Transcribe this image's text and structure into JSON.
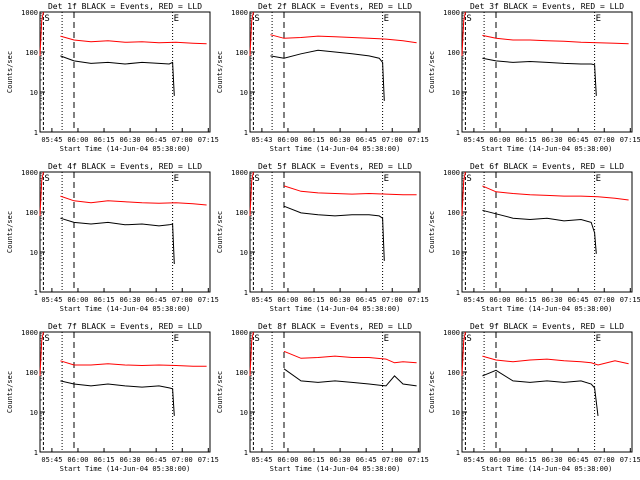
{
  "chart_data": [
    {
      "type": "line",
      "title": "Det 1f BLACK = Events, RED = LLD",
      "xlabel": "Start Time (14-Jun-04 05:38:00)",
      "ylabel": "Counts/sec",
      "x_ticks": [
        "05:45",
        "06:00",
        "06:15",
        "06:30",
        "06:45",
        "07:00",
        "07:15"
      ],
      "y_ticks": [
        "1",
        "10",
        "100",
        "1000"
      ],
      "markers": [
        "S",
        "E"
      ],
      "yscale": "log",
      "ylim": [
        1,
        1000
      ],
      "series": [
        {
          "name": "LLD",
          "color": "#ff0000",
          "points": [
            [
              0.12,
              250
            ],
            [
              0.2,
              200
            ],
            [
              0.3,
              180
            ],
            [
              0.4,
              190
            ],
            [
              0.5,
              175
            ],
            [
              0.6,
              180
            ],
            [
              0.7,
              170
            ],
            [
              0.8,
              175
            ],
            [
              0.9,
              165
            ],
            [
              0.98,
              160
            ]
          ]
        },
        {
          "name": "Events",
          "color": "#000000",
          "points": [
            [
              0.12,
              80
            ],
            [
              0.2,
              60
            ],
            [
              0.3,
              52
            ],
            [
              0.4,
              55
            ],
            [
              0.5,
              50
            ],
            [
              0.6,
              55
            ],
            [
              0.7,
              52
            ],
            [
              0.76,
              50
            ],
            [
              0.78,
              55
            ],
            [
              0.79,
              8
            ]
          ]
        }
      ]
    },
    {
      "type": "line",
      "title": "Det 2f BLACK = Events, RED = LLD",
      "xlabel": "Start Time (14-Jun-04 05:38:00)",
      "ylabel": "Counts/sec",
      "x_ticks": [
        "05:43",
        "06:00",
        "06:15",
        "06:30",
        "06:45",
        "07:00",
        "07:15"
      ],
      "y_ticks": [
        "1",
        "10",
        "100",
        "1000"
      ],
      "markers": [
        "S",
        "E"
      ],
      "yscale": "log",
      "ylim": [
        1,
        1000
      ],
      "series": [
        {
          "name": "LLD",
          "color": "#ff0000",
          "points": [
            [
              0.12,
              270
            ],
            [
              0.2,
              220
            ],
            [
              0.3,
              230
            ],
            [
              0.4,
              250
            ],
            [
              0.5,
              240
            ],
            [
              0.6,
              230
            ],
            [
              0.7,
              220
            ],
            [
              0.8,
              210
            ],
            [
              0.9,
              190
            ],
            [
              0.98,
              170
            ]
          ]
        },
        {
          "name": "Events",
          "color": "#000000",
          "points": [
            [
              0.12,
              80
            ],
            [
              0.2,
              70
            ],
            [
              0.3,
              90
            ],
            [
              0.4,
              110
            ],
            [
              0.5,
              100
            ],
            [
              0.6,
              90
            ],
            [
              0.7,
              80
            ],
            [
              0.76,
              70
            ],
            [
              0.78,
              55
            ],
            [
              0.79,
              6
            ]
          ]
        }
      ]
    },
    {
      "type": "line",
      "title": "Det 3f BLACK = Events, RED = LLD",
      "xlabel": "Start Time (14-Jun-04 05:38:00)",
      "ylabel": "Counts/sec",
      "x_ticks": [
        "05:45",
        "06:00",
        "06:15",
        "06:30",
        "06:45",
        "07:00",
        "07:15"
      ],
      "y_ticks": [
        "1",
        "10",
        "100",
        "1000"
      ],
      "markers": [
        "S",
        "E"
      ],
      "yscale": "log",
      "ylim": [
        1,
        1000
      ],
      "series": [
        {
          "name": "LLD",
          "color": "#ff0000",
          "points": [
            [
              0.12,
              260
            ],
            [
              0.2,
              220
            ],
            [
              0.3,
              200
            ],
            [
              0.4,
              200
            ],
            [
              0.5,
              190
            ],
            [
              0.6,
              185
            ],
            [
              0.7,
              175
            ],
            [
              0.8,
              170
            ],
            [
              0.9,
              165
            ],
            [
              0.98,
              160
            ]
          ]
        },
        {
          "name": "Events",
          "color": "#000000",
          "points": [
            [
              0.12,
              70
            ],
            [
              0.2,
              60
            ],
            [
              0.3,
              55
            ],
            [
              0.4,
              58
            ],
            [
              0.5,
              55
            ],
            [
              0.6,
              52
            ],
            [
              0.7,
              50
            ],
            [
              0.76,
              50
            ],
            [
              0.78,
              48
            ],
            [
              0.79,
              8
            ]
          ]
        }
      ]
    },
    {
      "type": "line",
      "title": "Det 4f BLACK = Events, RED = LLD",
      "xlabel": "Start Time (14-Jun-04 05:38:00)",
      "ylabel": "Counts/sec",
      "x_ticks": [
        "05:45",
        "06:00",
        "06:15",
        "06:30",
        "06:45",
        "07:00",
        "07:15"
      ],
      "y_ticks": [
        "1",
        "10",
        "100",
        "1000"
      ],
      "markers": [
        "S",
        "E"
      ],
      "yscale": "log",
      "ylim": [
        1,
        1000
      ],
      "series": [
        {
          "name": "LLD",
          "color": "#ff0000",
          "points": [
            [
              0.12,
              250
            ],
            [
              0.2,
              190
            ],
            [
              0.3,
              170
            ],
            [
              0.4,
              190
            ],
            [
              0.5,
              180
            ],
            [
              0.6,
              170
            ],
            [
              0.7,
              165
            ],
            [
              0.8,
              170
            ],
            [
              0.9,
              160
            ],
            [
              0.98,
              150
            ]
          ]
        },
        {
          "name": "Events",
          "color": "#000000",
          "points": [
            [
              0.12,
              70
            ],
            [
              0.2,
              55
            ],
            [
              0.3,
              50
            ],
            [
              0.4,
              55
            ],
            [
              0.5,
              48
            ],
            [
              0.6,
              50
            ],
            [
              0.7,
              45
            ],
            [
              0.76,
              48
            ],
            [
              0.78,
              50
            ],
            [
              0.79,
              5
            ]
          ]
        }
      ]
    },
    {
      "type": "line",
      "title": "Det 5f BLACK = Events, RED = LLD",
      "xlabel": "Start Time (14-Jun-04 05:38:00)",
      "ylabel": "Counts/sec",
      "x_ticks": [
        "05:45",
        "06:00",
        "06:15",
        "06:30",
        "06:45",
        "07:00",
        "07:15"
      ],
      "y_ticks": [
        "1",
        "10",
        "100",
        "1000"
      ],
      "markers": [
        "S",
        "E"
      ],
      "yscale": "log",
      "ylim": [
        1,
        1000
      ],
      "series": [
        {
          "name": "LLD",
          "color": "#ff0000",
          "points": [
            [
              0.2,
              450
            ],
            [
              0.3,
              330
            ],
            [
              0.4,
              300
            ],
            [
              0.5,
              290
            ],
            [
              0.6,
              280
            ],
            [
              0.7,
              290
            ],
            [
              0.8,
              280
            ],
            [
              0.9,
              270
            ],
            [
              0.98,
              270
            ]
          ]
        },
        {
          "name": "Events",
          "color": "#000000",
          "points": [
            [
              0.2,
              140
            ],
            [
              0.3,
              95
            ],
            [
              0.4,
              85
            ],
            [
              0.5,
              80
            ],
            [
              0.6,
              85
            ],
            [
              0.7,
              85
            ],
            [
              0.76,
              80
            ],
            [
              0.78,
              70
            ],
            [
              0.79,
              6
            ]
          ]
        }
      ]
    },
    {
      "type": "line",
      "title": "Det 6f BLACK = Events, RED = LLD",
      "xlabel": "Start Time (14-Jun-04 05:38:00)",
      "ylabel": "Counts/sec",
      "x_ticks": [
        "05:45",
        "06:00",
        "06:15",
        "06:30",
        "06:45",
        "07:00",
        "07:15"
      ],
      "y_ticks": [
        "1",
        "10",
        "100",
        "1000"
      ],
      "markers": [
        "S",
        "E"
      ],
      "yscale": "log",
      "ylim": [
        1,
        1000
      ],
      "series": [
        {
          "name": "LLD",
          "color": "#ff0000",
          "points": [
            [
              0.12,
              450
            ],
            [
              0.2,
              320
            ],
            [
              0.3,
              290
            ],
            [
              0.4,
              270
            ],
            [
              0.5,
              260
            ],
            [
              0.6,
              250
            ],
            [
              0.7,
              250
            ],
            [
              0.8,
              240
            ],
            [
              0.9,
              220
            ],
            [
              0.98,
              200
            ]
          ]
        },
        {
          "name": "Events",
          "color": "#000000",
          "points": [
            [
              0.12,
              110
            ],
            [
              0.2,
              90
            ],
            [
              0.3,
              70
            ],
            [
              0.4,
              65
            ],
            [
              0.5,
              70
            ],
            [
              0.6,
              60
            ],
            [
              0.7,
              65
            ],
            [
              0.76,
              55
            ],
            [
              0.78,
              30
            ],
            [
              0.79,
              9
            ]
          ]
        }
      ]
    },
    {
      "type": "line",
      "title": "Det 7f BLACK = Events, RED = LLD",
      "xlabel": "Start Time (14-Jun-04 05:38:00)",
      "ylabel": "Counts/sec",
      "x_ticks": [
        "05:45",
        "06:00",
        "06:15",
        "06:30",
        "06:45",
        "07:00",
        "07:15"
      ],
      "y_ticks": [
        "1",
        "10",
        "100",
        "1000"
      ],
      "markers": [
        "S",
        "E"
      ],
      "yscale": "log",
      "ylim": [
        1,
        1000
      ],
      "series": [
        {
          "name": "LLD",
          "color": "#ff0000",
          "points": [
            [
              0.12,
              190
            ],
            [
              0.2,
              150
            ],
            [
              0.3,
              150
            ],
            [
              0.4,
              160
            ],
            [
              0.5,
              150
            ],
            [
              0.6,
              145
            ],
            [
              0.7,
              150
            ],
            [
              0.8,
              145
            ],
            [
              0.9,
              140
            ],
            [
              0.98,
              140
            ]
          ]
        },
        {
          "name": "Events",
          "color": "#000000",
          "points": [
            [
              0.12,
              60
            ],
            [
              0.2,
              50
            ],
            [
              0.3,
              45
            ],
            [
              0.4,
              50
            ],
            [
              0.5,
              45
            ],
            [
              0.6,
              42
            ],
            [
              0.7,
              45
            ],
            [
              0.76,
              40
            ],
            [
              0.78,
              38
            ],
            [
              0.79,
              8
            ]
          ]
        }
      ]
    },
    {
      "type": "line",
      "title": "Det 8f BLACK = Events, RED = LLD",
      "xlabel": "Start Time (14-Jun-04 05:38:00)",
      "ylabel": "Counts/sec",
      "x_ticks": [
        "05:45",
        "06:00",
        "06:15",
        "06:30",
        "06:45",
        "07:00",
        "07:15"
      ],
      "y_ticks": [
        "1",
        "10",
        "100",
        "1000"
      ],
      "markers": [
        "S",
        "E"
      ],
      "yscale": "log",
      "ylim": [
        1,
        1000
      ],
      "series": [
        {
          "name": "LLD",
          "color": "#ff0000",
          "points": [
            [
              0.2,
              330
            ],
            [
              0.3,
              220
            ],
            [
              0.4,
              230
            ],
            [
              0.5,
              250
            ],
            [
              0.6,
              230
            ],
            [
              0.7,
              230
            ],
            [
              0.8,
              210
            ],
            [
              0.85,
              170
            ],
            [
              0.9,
              180
            ],
            [
              0.98,
              170
            ]
          ]
        },
        {
          "name": "Events",
          "color": "#000000",
          "points": [
            [
              0.2,
              120
            ],
            [
              0.3,
              60
            ],
            [
              0.4,
              55
            ],
            [
              0.5,
              60
            ],
            [
              0.6,
              55
            ],
            [
              0.7,
              50
            ],
            [
              0.8,
              45
            ],
            [
              0.85,
              80
            ],
            [
              0.9,
              50
            ],
            [
              0.98,
              45
            ]
          ]
        }
      ]
    },
    {
      "type": "line",
      "title": "Det 9f BLACK = Events, RED = LLD",
      "xlabel": "Start Time (14-Jun-04 05:38:00)",
      "ylabel": "Counts/sec",
      "x_ticks": [
        "05:45",
        "06:00",
        "06:15",
        "06:30",
        "06:45",
        "07:00",
        "07:15"
      ],
      "y_ticks": [
        "1",
        "10",
        "100",
        "1000"
      ],
      "markers": [
        "S",
        "E"
      ],
      "yscale": "log",
      "ylim": [
        1,
        1000
      ],
      "series": [
        {
          "name": "LLD",
          "color": "#ff0000",
          "points": [
            [
              0.12,
              250
            ],
            [
              0.2,
              200
            ],
            [
              0.3,
              180
            ],
            [
              0.4,
              200
            ],
            [
              0.5,
              210
            ],
            [
              0.6,
              190
            ],
            [
              0.7,
              180
            ],
            [
              0.76,
              170
            ],
            [
              0.8,
              150
            ],
            [
              0.9,
              190
            ],
            [
              0.98,
              160
            ]
          ]
        },
        {
          "name": "Events",
          "color": "#000000",
          "points": [
            [
              0.12,
              80
            ],
            [
              0.2,
              110
            ],
            [
              0.3,
              60
            ],
            [
              0.4,
              55
            ],
            [
              0.5,
              60
            ],
            [
              0.6,
              55
            ],
            [
              0.7,
              60
            ],
            [
              0.76,
              50
            ],
            [
              0.78,
              40
            ],
            [
              0.8,
              8
            ]
          ]
        }
      ]
    }
  ]
}
